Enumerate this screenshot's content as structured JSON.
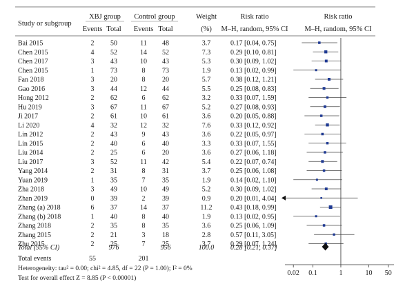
{
  "chart_data": {
    "type": "forest",
    "headers": {
      "study": "Study or subgroup",
      "group1": "XBJ group",
      "group2": "Control group",
      "events": "Events",
      "total": "Total",
      "weight": "Weight",
      "weight_unit": "(%)",
      "rr": "Risk ratio",
      "rr_method": "M–H, random, 95% CI",
      "plot_title": "Risk ratio",
      "plot_method": "M–H, random, 95% CI"
    },
    "studies": [
      {
        "name": "Bai 2015",
        "e1": "2",
        "t1": "50",
        "e2": "11",
        "t2": "48",
        "weight": "3.7",
        "ci": "0.17 [0.04, 0.75]",
        "rr": 0.17,
        "lo": 0.04,
        "hi": 0.75
      },
      {
        "name": "Chen 2015",
        "e1": "4",
        "t1": "52",
        "e2": "14",
        "t2": "52",
        "weight": "7.3",
        "ci": "0.29 [0.10, 0.81]",
        "rr": 0.29,
        "lo": 0.1,
        "hi": 0.81
      },
      {
        "name": "Chen 2017",
        "e1": "3",
        "t1": "43",
        "e2": "10",
        "t2": "43",
        "weight": "5.3",
        "ci": "0.30 [0.09, 1.02]",
        "rr": 0.3,
        "lo": 0.09,
        "hi": 1.02
      },
      {
        "name": "Chen 2015",
        "e1": "1",
        "t1": "73",
        "e2": "8",
        "t2": "73",
        "weight": "1.9",
        "ci": "0.13 [0.02, 0.99]",
        "rr": 0.13,
        "lo": 0.02,
        "hi": 0.99
      },
      {
        "name": "Fan 2018",
        "e1": "3",
        "t1": "20",
        "e2": "8",
        "t2": "20",
        "weight": "5.7",
        "ci": "0.38 [0.12, 1.21]",
        "rr": 0.38,
        "lo": 0.12,
        "hi": 1.21
      },
      {
        "name": "Gao 2016",
        "e1": "3",
        "t1": "44",
        "e2": "12",
        "t2": "44",
        "weight": "5.5",
        "ci": "0.25 [0.08, 0.83]",
        "rr": 0.25,
        "lo": 0.08,
        "hi": 0.83
      },
      {
        "name": "Hong 2012",
        "e1": "2",
        "t1": "62",
        "e2": "6",
        "t2": "62",
        "weight": "3.2",
        "ci": "0.33 [0.07, 1.59]",
        "rr": 0.33,
        "lo": 0.07,
        "hi": 1.59
      },
      {
        "name": "Hu 2019",
        "e1": "3",
        "t1": "67",
        "e2": "11",
        "t2": "67",
        "weight": "5.2",
        "ci": "0.27 [0.08, 0.93]",
        "rr": 0.27,
        "lo": 0.08,
        "hi": 0.93
      },
      {
        "name": "Ji 2017",
        "e1": "2",
        "t1": "61",
        "e2": "10",
        "t2": "61",
        "weight": "3.6",
        "ci": "0.20 [0.05, 0.88]",
        "rr": 0.2,
        "lo": 0.05,
        "hi": 0.88
      },
      {
        "name": "Li 2020",
        "e1": "4",
        "t1": "32",
        "e2": "12",
        "t2": "32",
        "weight": "7.6",
        "ci": "0.33 [0.12, 0.92]",
        "rr": 0.33,
        "lo": 0.12,
        "hi": 0.92
      },
      {
        "name": "Lin 2012",
        "e1": "2",
        "t1": "43",
        "e2": "9",
        "t2": "43",
        "weight": "3.6",
        "ci": "0.22 [0.05, 0.97]",
        "rr": 0.22,
        "lo": 0.05,
        "hi": 0.97
      },
      {
        "name": "Lin 2015",
        "e1": "2",
        "t1": "40",
        "e2": "6",
        "t2": "40",
        "weight": "3.3",
        "ci": "0.33 [0.07, 1.55]",
        "rr": 0.33,
        "lo": 0.07,
        "hi": 1.55
      },
      {
        "name": "Liu 2014",
        "e1": "2",
        "t1": "25",
        "e2": "6",
        "t2": "20",
        "weight": "3.6",
        "ci": "0.27 [0.06, 1.18]",
        "rr": 0.27,
        "lo": 0.06,
        "hi": 1.18
      },
      {
        "name": "Liu 2017",
        "e1": "3",
        "t1": "52",
        "e2": "11",
        "t2": "42",
        "weight": "5.4",
        "ci": "0.22 [0.07, 0.74]",
        "rr": 0.22,
        "lo": 0.07,
        "hi": 0.74
      },
      {
        "name": "Yang 2014",
        "e1": "2",
        "t1": "31",
        "e2": "8",
        "t2": "31",
        "weight": "3.7",
        "ci": "0.25 [0.06, 1.08]",
        "rr": 0.25,
        "lo": 0.06,
        "hi": 1.08
      },
      {
        "name": "Yuan 2019",
        "e1": "1",
        "t1": "35",
        "e2": "7",
        "t2": "35",
        "weight": "1.9",
        "ci": "0.14 [0.02, 1.10]",
        "rr": 0.14,
        "lo": 0.02,
        "hi": 1.1
      },
      {
        "name": "Zha 2018",
        "e1": "3",
        "t1": "49",
        "e2": "10",
        "t2": "49",
        "weight": "5.2",
        "ci": "0.30 [0.09, 1.02]",
        "rr": 0.3,
        "lo": 0.09,
        "hi": 1.02
      },
      {
        "name": "Zhan 2019",
        "e1": "0",
        "t1": "39",
        "e2": "2",
        "t2": "39",
        "weight": "0.9",
        "ci": "0.20 [0.01, 4.04]",
        "rr": 0.2,
        "lo": 0.01,
        "hi": 4.04
      },
      {
        "name": "Zhang (a) 2018",
        "e1": "6",
        "t1": "37",
        "e2": "14",
        "t2": "37",
        "weight": "11.2",
        "ci": "0.43 [0.18, 0.99]",
        "rr": 0.43,
        "lo": 0.18,
        "hi": 0.99
      },
      {
        "name": "Zhang (b) 2018",
        "e1": "1",
        "t1": "40",
        "e2": "8",
        "t2": "40",
        "weight": "1.9",
        "ci": "0.13 [0.02, 0.95]",
        "rr": 0.13,
        "lo": 0.02,
        "hi": 0.95
      },
      {
        "name": "Zhang 2018",
        "e1": "2",
        "t1": "35",
        "e2": "8",
        "t2": "35",
        "weight": "3.6",
        "ci": "0.25 [0.06, 1.09]",
        "rr": 0.25,
        "lo": 0.06,
        "hi": 1.09
      },
      {
        "name": "Zhang 2015",
        "e1": "2",
        "t1": "21",
        "e2": "3",
        "t2": "18",
        "weight": "2.8",
        "ci": "0.57 [0.11, 3.05]",
        "rr": 0.57,
        "lo": 0.11,
        "hi": 3.05
      },
      {
        "name": "Zhu 2015",
        "e1": "2",
        "t1": "25",
        "e2": "7",
        "t2": "25",
        "weight": "3.7",
        "ci": "0.29 [0.07, 1.24]",
        "rr": 0.29,
        "lo": 0.07,
        "hi": 1.24
      }
    ],
    "total": {
      "label": "Total (95% CI)",
      "t1": "976",
      "t2": "956",
      "weight": "100.0",
      "ci": "0.28 [0.21, 0.37]",
      "rr": 0.28,
      "lo": 0.21,
      "hi": 0.37
    },
    "total_events": {
      "label": "Total events",
      "e1": "55",
      "e2": "201"
    },
    "heterogeneity": "Heterogeneity: tau² = 0.00; chi² = 4.85, df = 22 (P = 1.00); I² = 0%",
    "overall_effect": "Test for overall effect Z = 8.85 (P < 0.00001)",
    "axis": {
      "scale": "log",
      "ticks": [
        0.02,
        0.1,
        1,
        10,
        50
      ],
      "tick_labels": [
        "0.02",
        "0.1",
        "1",
        "10",
        "50"
      ],
      "xlim": [
        0.01,
        80
      ]
    }
  }
}
